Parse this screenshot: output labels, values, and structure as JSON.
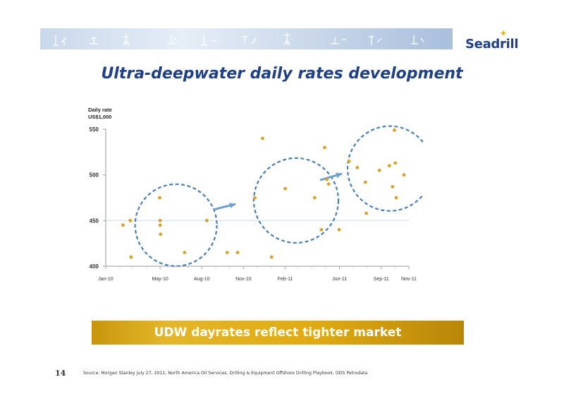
{
  "logo": {
    "text": "Seadrill"
  },
  "title": "Ultra-deepwater daily rates development",
  "callout": "UDW dayrates reflect tighter market",
  "page_number": "14",
  "source": "Source: Morgan Stanley July 27, 2011, North America Oil Services, Drilling & Equipment Offshore Drilling Playbook, ODS Petrodata",
  "colors": {
    "brand_blue": "#1f3f86",
    "accent_gold": "#e0aa12",
    "point": "#d9a128",
    "circle": "#4a7fb8",
    "arrow": "#6fa0d0"
  },
  "chart_data": {
    "type": "scatter",
    "title": "",
    "ylabel_lines": [
      "Daily rate",
      "US$1,000"
    ],
    "xlabel": "",
    "ylim": [
      400,
      550
    ],
    "yticks": [
      400,
      450,
      500,
      550
    ],
    "xlim": [
      "2010-01-01",
      "2011-11-01"
    ],
    "xticks": [
      {
        "date": "2010-01-01",
        "label": "Jan-10"
      },
      {
        "date": "2010-05-01",
        "label": "May-10"
      },
      {
        "date": "2010-08-01",
        "label": "Aug-10"
      },
      {
        "date": "2010-11-01",
        "label": "Nov-10"
      },
      {
        "date": "2011-02-01",
        "label": "Feb-11"
      },
      {
        "date": "2011-06-01",
        "label": "Jun-11"
      },
      {
        "date": "2011-09-01",
        "label": "Sep-11"
      },
      {
        "date": "2011-11-01",
        "label": "Nov-11"
      }
    ],
    "grid": "horizontal at 450",
    "points": [
      {
        "x": "2010-02-08",
        "y": 445
      },
      {
        "x": "2010-02-24",
        "y": 450
      },
      {
        "x": "2010-02-26",
        "y": 410
      },
      {
        "x": "2010-04-30",
        "y": 475
      },
      {
        "x": "2010-05-01",
        "y": 450
      },
      {
        "x": "2010-05-01",
        "y": 445
      },
      {
        "x": "2010-05-02",
        "y": 435
      },
      {
        "x": "2010-06-24",
        "y": 415
      },
      {
        "x": "2010-08-12",
        "y": 450
      },
      {
        "x": "2010-09-26",
        "y": 415
      },
      {
        "x": "2010-10-19",
        "y": 415
      },
      {
        "x": "2010-11-26",
        "y": 475
      },
      {
        "x": "2010-12-13",
        "y": 540
      },
      {
        "x": "2011-01-02",
        "y": 410
      },
      {
        "x": "2011-02-01",
        "y": 485
      },
      {
        "x": "2011-04-07",
        "y": 475
      },
      {
        "x": "2011-04-22",
        "y": 440
      },
      {
        "x": "2011-04-29",
        "y": 530
      },
      {
        "x": "2011-05-04",
        "y": 495
      },
      {
        "x": "2011-05-08",
        "y": 490
      },
      {
        "x": "2011-05-31",
        "y": 440
      },
      {
        "x": "2011-06-22",
        "y": 515
      },
      {
        "x": "2011-07-10",
        "y": 508
      },
      {
        "x": "2011-07-28",
        "y": 492
      },
      {
        "x": "2011-07-30",
        "y": 458
      },
      {
        "x": "2011-08-28",
        "y": 505
      },
      {
        "x": "2011-09-19",
        "y": 510
      },
      {
        "x": "2011-09-26",
        "y": 487
      },
      {
        "x": "2011-09-30",
        "y": 549
      },
      {
        "x": "2011-10-02",
        "y": 513
      },
      {
        "x": "2011-10-04",
        "y": 475
      },
      {
        "x": "2011-10-21",
        "y": 500
      }
    ]
  }
}
